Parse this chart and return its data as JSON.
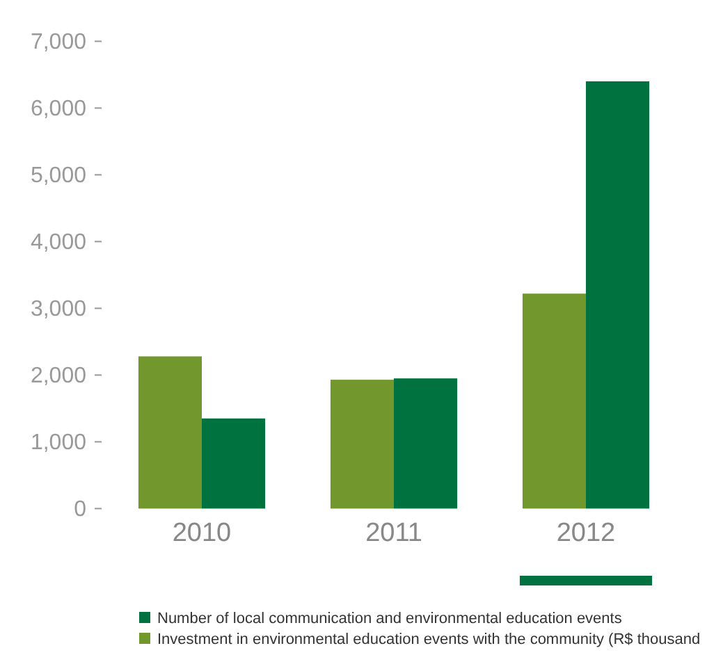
{
  "chart_data": {
    "type": "bar",
    "categories": [
      "2010",
      "2011",
      "2012"
    ],
    "series": [
      {
        "name": "Investment in environmental education events with the community (R$ thousand",
        "color": "#72982d",
        "values": [
          2280,
          1930,
          3220
        ]
      },
      {
        "name": "Number of local communication and environmental education events",
        "color": "#00723f",
        "values": [
          1350,
          1950,
          6400
        ]
      }
    ],
    "ylim": [
      0,
      7000
    ],
    "yticks": [
      {
        "value": 0,
        "label": "0"
      },
      {
        "value": 1000,
        "label": "1,000"
      },
      {
        "value": 2000,
        "label": "2,000"
      },
      {
        "value": 3000,
        "label": "3,000"
      },
      {
        "value": 4000,
        "label": "4,000"
      },
      {
        "value": 5000,
        "label": "5,000"
      },
      {
        "value": 6000,
        "label": "6,000"
      },
      {
        "value": 7000,
        "label": "7,000"
      }
    ],
    "grid": false,
    "legend": "bottom"
  }
}
